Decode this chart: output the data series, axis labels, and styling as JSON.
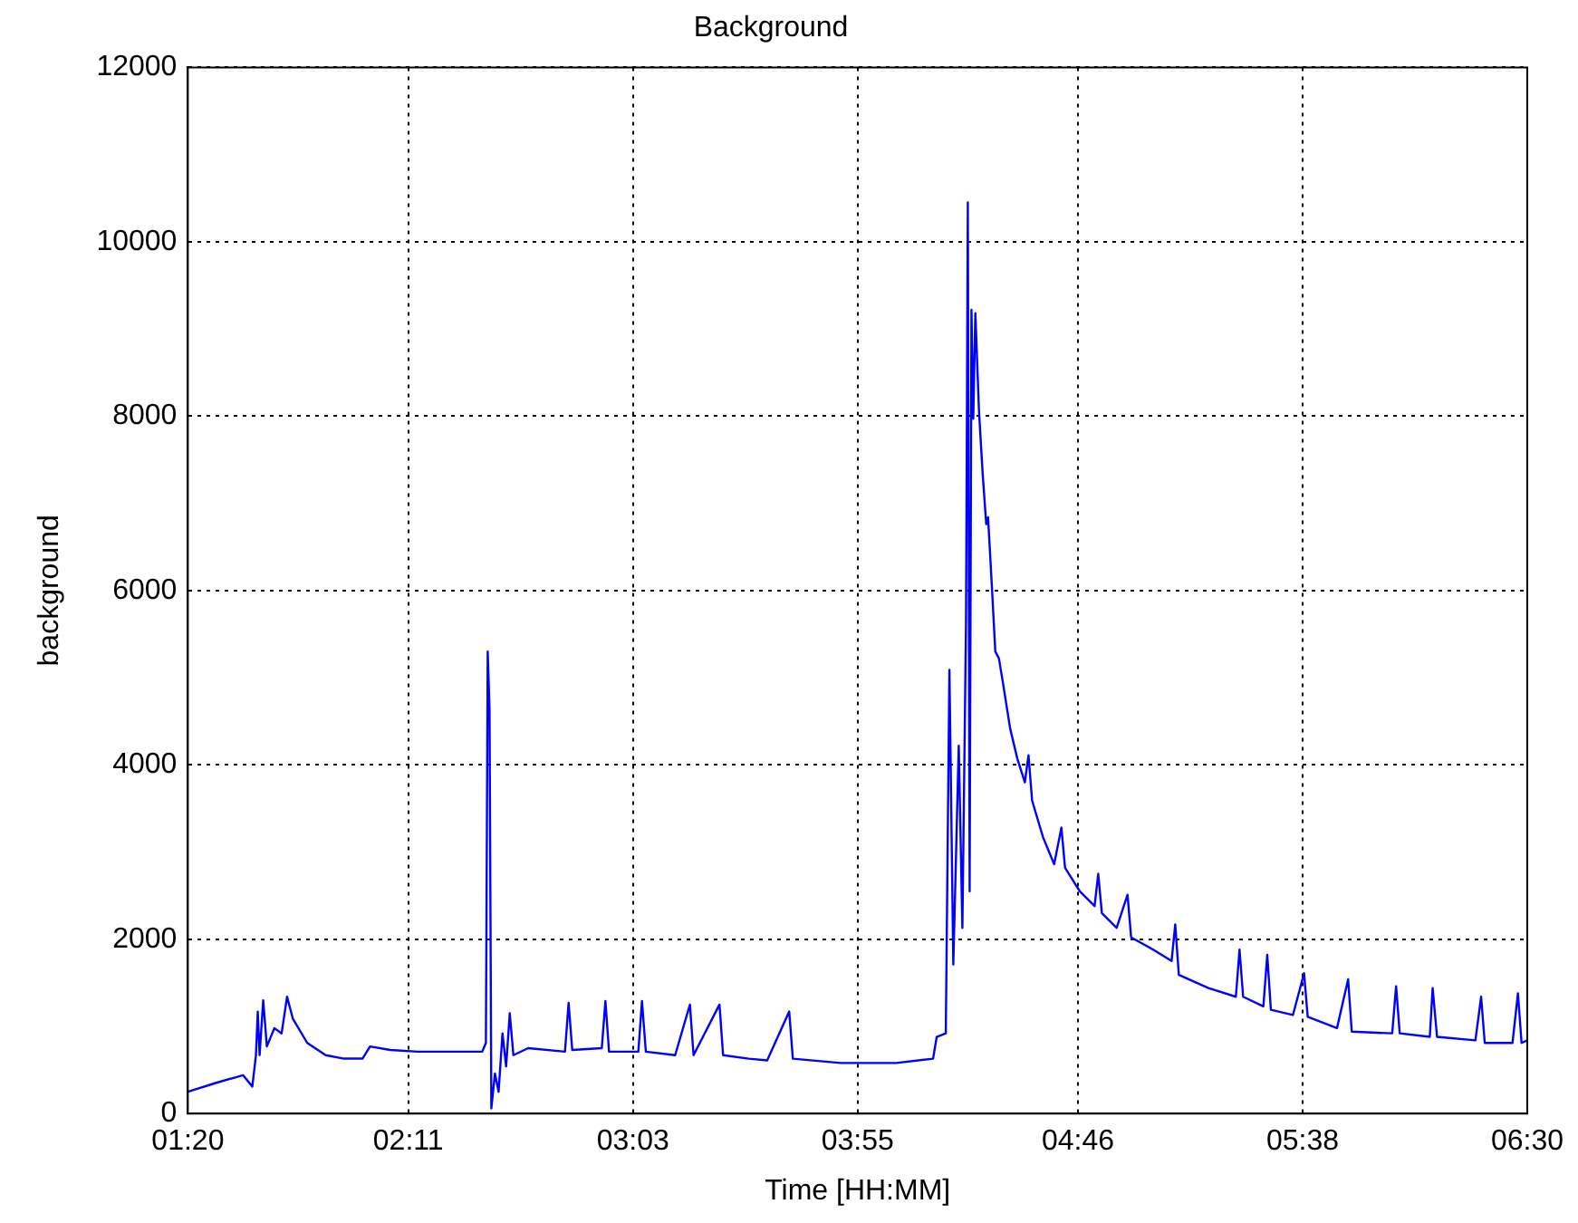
{
  "chart_data": {
    "type": "line",
    "title": "Background",
    "xlabel": "Time [HH:MM]",
    "ylabel": "background",
    "grid": true,
    "marker": "none",
    "line_style": "solid",
    "xlim": [
      1.3333,
      6.5
    ],
    "xticks": [
      {
        "value": 1.3333,
        "label": "01:20"
      },
      {
        "value": 2.1833,
        "label": "02:11"
      },
      {
        "value": 3.05,
        "label": "03:03"
      },
      {
        "value": 3.9167,
        "label": "03:55"
      },
      {
        "value": 4.7667,
        "label": "04:46"
      },
      {
        "value": 5.6333,
        "label": "05:38"
      },
      {
        "value": 6.5,
        "label": "06:30"
      }
    ],
    "ylim": [
      0,
      12000
    ],
    "yticks": [
      0,
      2000,
      4000,
      6000,
      8000,
      10000,
      12000
    ],
    "series": [
      {
        "color": "#0000ff",
        "x": [
          1.3333,
          1.44,
          1.546,
          1.582,
          1.596,
          1.603,
          1.61,
          1.624,
          1.638,
          1.667,
          1.695,
          1.716,
          1.738,
          1.794,
          1.865,
          1.936,
          2.007,
          2.036,
          2.114,
          2.22,
          2.469,
          2.483,
          2.49,
          2.497,
          2.504,
          2.518,
          2.532,
          2.547,
          2.561,
          2.575,
          2.589,
          2.646,
          2.788,
          2.802,
          2.816,
          2.93,
          2.944,
          2.958,
          3.071,
          3.085,
          3.1,
          3.213,
          3.27,
          3.284,
          3.384,
          3.398,
          3.497,
          3.568,
          3.653,
          3.667,
          3.852,
          4.066,
          4.208,
          4.222,
          4.257,
          4.271,
          4.286,
          4.307,
          4.321,
          4.335,
          4.342,
          4.349,
          4.356,
          4.363,
          4.371,
          4.385,
          4.399,
          4.413,
          4.42,
          4.434,
          4.448,
          4.462,
          4.477,
          4.505,
          4.533,
          4.562,
          4.576,
          4.59,
          4.632,
          4.675,
          4.703,
          4.717,
          4.774,
          4.831,
          4.845,
          4.859,
          4.916,
          4.958,
          4.972,
          5.057,
          5.128,
          5.142,
          5.156,
          5.27,
          5.376,
          5.39,
          5.404,
          5.482,
          5.497,
          5.511,
          5.596,
          5.639,
          5.653,
          5.766,
          5.809,
          5.823,
          5.979,
          5.994,
          6.008,
          6.124,
          6.135,
          6.152,
          6.3,
          6.322,
          6.336,
          6.443,
          6.464,
          6.478,
          6.5
        ],
        "values": [
          250,
          350,
          440,
          310,
          670,
          1170,
          670,
          1300,
          770,
          980,
          920,
          1340,
          1090,
          810,
          670,
          630,
          630,
          770,
          730,
          710,
          710,
          810,
          5300,
          4630,
          60,
          460,
          250,
          920,
          540,
          1150,
          670,
          750,
          710,
          1270,
          730,
          750,
          1290,
          710,
          710,
          1290,
          710,
          670,
          1250,
          670,
          1250,
          670,
          630,
          610,
          1170,
          630,
          580,
          580,
          630,
          880,
          920,
          5090,
          1710,
          4220,
          2130,
          5630,
          10450,
          2550,
          9220,
          7970,
          9180,
          8060,
          7350,
          6760,
          6840,
          6090,
          5300,
          5220,
          4950,
          4420,
          4070,
          3800,
          4110,
          3590,
          3170,
          2860,
          3280,
          2820,
          2550,
          2380,
          2750,
          2300,
          2130,
          2510,
          2020,
          1880,
          1750,
          2170,
          1590,
          1440,
          1340,
          1880,
          1340,
          1230,
          1820,
          1190,
          1130,
          1610,
          1110,
          980,
          1540,
          940,
          920,
          1460,
          920,
          880,
          1440,
          880,
          840,
          1340,
          810,
          810,
          1380,
          810,
          840
        ]
      }
    ]
  }
}
